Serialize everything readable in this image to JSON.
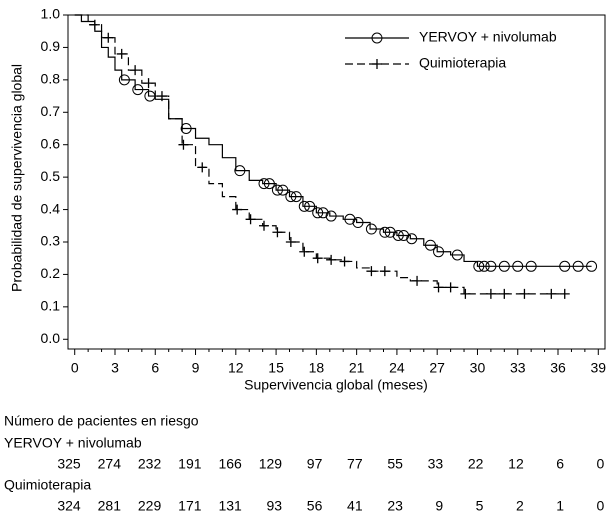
{
  "chart_data": {
    "type": "step",
    "ylabel": "Probabilidad de supervivencia global",
    "xlabel": "Supervivencia global (meses)",
    "xlim": [
      -0.5,
      39.5
    ],
    "ylim": [
      -0.03,
      1.0
    ],
    "xticks": [
      0,
      3,
      6,
      9,
      12,
      15,
      18,
      21,
      24,
      27,
      30,
      33,
      36,
      39
    ],
    "yticks": [
      {
        "value": 0,
        "label": "0.0"
      },
      0.1,
      0.2,
      0.3,
      0.4,
      0.5,
      0.6,
      0.7,
      0.8,
      0.9,
      {
        "value": 1,
        "label": "1.0"
      }
    ],
    "legend": "top-right",
    "series": [
      {
        "name": "YERVOY + nivolumab",
        "color": "#000000",
        "marker": "circle",
        "dashed": false,
        "x": [
          0,
          0.5,
          1.5,
          2,
          2.5,
          3,
          3.5,
          4.5,
          5.5,
          6,
          7,
          8,
          9,
          10,
          11,
          12,
          13,
          14,
          15,
          16,
          17,
          18,
          19,
          20,
          21,
          22,
          23,
          24,
          25,
          26,
          27,
          28,
          29,
          30,
          38.5
        ],
        "values": [
          1.0,
          0.98,
          0.95,
          0.9,
          0.87,
          0.83,
          0.8,
          0.77,
          0.75,
          0.74,
          0.68,
          0.65,
          0.62,
          0.6,
          0.56,
          0.52,
          0.49,
          0.48,
          0.46,
          0.44,
          0.41,
          0.39,
          0.38,
          0.37,
          0.36,
          0.34,
          0.33,
          0.32,
          0.31,
          0.29,
          0.27,
          0.26,
          0.24,
          0.225,
          0.225
        ],
        "censor_x": [
          3.7,
          4.7,
          5.6,
          8.3,
          12.3,
          14.1,
          14.5,
          15.1,
          15.5,
          16.1,
          16.5,
          17.1,
          17.5,
          18.1,
          18.5,
          19.1,
          20.5,
          21.1,
          22.1,
          23.1,
          23.5,
          24.1,
          24.5,
          25.1,
          26.5,
          27.1,
          28.5,
          30.1,
          30.5,
          31,
          32,
          33,
          34,
          36.5,
          37.5,
          38.5
        ],
        "censor_y": [
          0.8,
          0.77,
          0.75,
          0.65,
          0.52,
          0.48,
          0.48,
          0.46,
          0.46,
          0.44,
          0.44,
          0.41,
          0.41,
          0.39,
          0.39,
          0.38,
          0.37,
          0.36,
          0.34,
          0.33,
          0.33,
          0.32,
          0.32,
          0.31,
          0.29,
          0.27,
          0.26,
          0.225,
          0.225,
          0.225,
          0.225,
          0.225,
          0.225,
          0.225,
          0.225,
          0.225
        ]
      },
      {
        "name": "Quimioterapia",
        "color": "#000000",
        "marker": "plus",
        "dashed": true,
        "x": [
          0,
          1,
          2,
          3,
          4,
          5,
          6,
          7,
          8,
          9,
          10,
          11,
          12,
          13,
          14,
          15,
          16,
          17,
          18,
          19,
          20,
          21,
          22,
          24,
          25,
          27,
          29,
          36.5
        ],
        "values": [
          1.0,
          0.97,
          0.93,
          0.88,
          0.83,
          0.79,
          0.75,
          0.68,
          0.6,
          0.53,
          0.48,
          0.44,
          0.4,
          0.37,
          0.35,
          0.33,
          0.3,
          0.27,
          0.25,
          0.245,
          0.24,
          0.22,
          0.21,
          0.19,
          0.18,
          0.16,
          0.14,
          0.14
        ],
        "censor_x": [
          1.5,
          2.5,
          3.5,
          4.5,
          5.5,
          6.5,
          8.1,
          9.5,
          12.1,
          13.1,
          14.1,
          15.1,
          16.1,
          17.1,
          18.1,
          19.1,
          20.1,
          22.1,
          23.1,
          25.5,
          27.1,
          28,
          29.1,
          31,
          32,
          33.5,
          35.5,
          36.5
        ],
        "censor_y": [
          0.97,
          0.93,
          0.88,
          0.83,
          0.79,
          0.75,
          0.6,
          0.53,
          0.4,
          0.37,
          0.35,
          0.33,
          0.3,
          0.27,
          0.25,
          0.245,
          0.24,
          0.21,
          0.21,
          0.18,
          0.16,
          0.16,
          0.14,
          0.14,
          0.14,
          0.14,
          0.14,
          0.14
        ]
      }
    ],
    "risk_table": {
      "title": "Número de pacientes en riesgo",
      "rows": [
        {
          "name": "YERVOY + nivolumab",
          "counts": [
            325,
            274,
            232,
            191,
            166,
            129,
            97,
            77,
            55,
            33,
            22,
            12,
            6,
            0
          ]
        },
        {
          "name": "Quimioterapia",
          "counts": [
            324,
            281,
            229,
            171,
            131,
            93,
            56,
            41,
            23,
            9,
            5,
            2,
            1,
            0
          ]
        }
      ]
    }
  }
}
